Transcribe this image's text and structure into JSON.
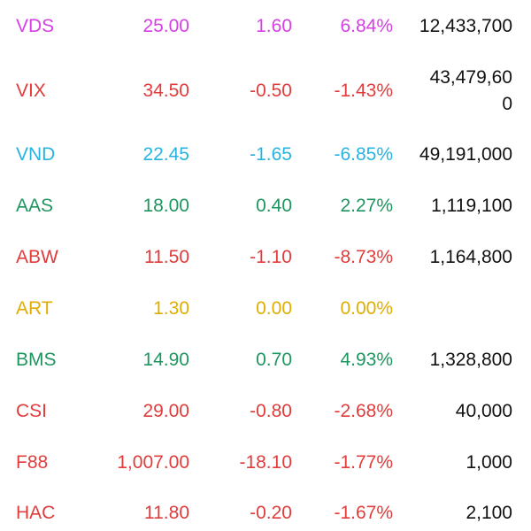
{
  "colors": {
    "magenta": "#d63fe6",
    "red": "#e03c3c",
    "cyan": "#27b4e0",
    "green": "#1e9660",
    "yellow": "#e1ad00",
    "text": "#111111"
  },
  "rows": [
    {
      "symbol": "VDS",
      "price": "25.00",
      "change": "1.60",
      "pct": "6.84%",
      "volume": "12,433,700",
      "color": "magenta"
    },
    {
      "symbol": "VIX",
      "price": "34.50",
      "change": "-0.50",
      "pct": "-1.43%",
      "volume_line1": "43,479,60",
      "volume_line2": "0",
      "color": "red"
    },
    {
      "symbol": "VND",
      "price": "22.45",
      "change": "-1.65",
      "pct": "-6.85%",
      "volume": "49,191,000",
      "color": "cyan"
    },
    {
      "symbol": "AAS",
      "price": "18.00",
      "change": "0.40",
      "pct": "2.27%",
      "volume": "1,119,100",
      "color": "green"
    },
    {
      "symbol": "ABW",
      "price": "11.50",
      "change": "-1.10",
      "pct": "-8.73%",
      "volume": "1,164,800",
      "color": "red"
    },
    {
      "symbol": "ART",
      "price": "1.30",
      "change": "0.00",
      "pct": "0.00%",
      "volume": "",
      "color": "yellow"
    },
    {
      "symbol": "BMS",
      "price": "14.90",
      "change": "0.70",
      "pct": "4.93%",
      "volume": "1,328,800",
      "color": "green"
    },
    {
      "symbol": "CSI",
      "price": "29.00",
      "change": "-0.80",
      "pct": "-2.68%",
      "volume": "40,000",
      "color": "red"
    },
    {
      "symbol": "F88",
      "price": "1,007.00",
      "change": "-18.10",
      "pct": "-1.77%",
      "volume": "1,000",
      "color": "red"
    },
    {
      "symbol": "HAC",
      "price": "11.80",
      "change": "-0.20",
      "pct": "-1.67%",
      "volume": "2,100",
      "color": "red"
    }
  ]
}
